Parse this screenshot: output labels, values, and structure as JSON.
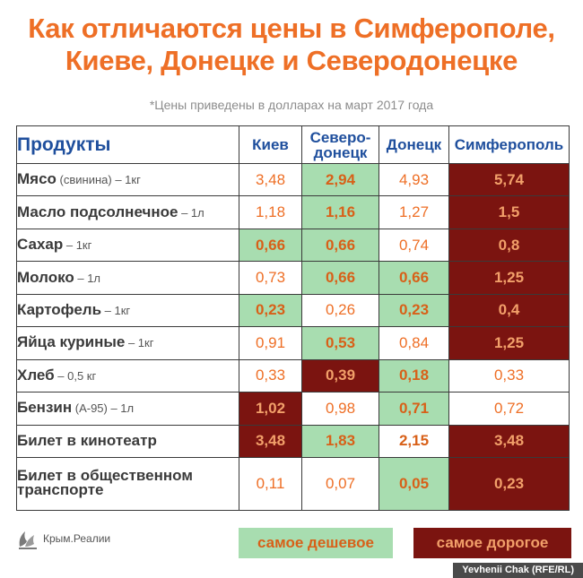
{
  "title_line1": "Как отличаются цены в Симферополе,",
  "title_line2": "Киеве, Донецке и Северодонецке",
  "subtitle": "*Цены приведены в долларах на март 2017 года",
  "headers": {
    "products": "Продукты",
    "kiev": "Киев",
    "severodonetsk_line1": "Северо-",
    "severodonetsk_line2": "донецк",
    "donetsk": "Донецк",
    "simferopol": "Симферополь"
  },
  "rows": [
    {
      "name": "Мясо",
      "unit": " (свинина) – 1кг",
      "kiev": "3,48",
      "severo": "2,94",
      "donetsk": "4,93",
      "simf": "5,74"
    },
    {
      "name": "Масло подсолнечное",
      "unit": " – 1л",
      "kiev": "1,18",
      "severo": "1,16",
      "donetsk": "1,27",
      "simf": "1,5"
    },
    {
      "name": "Сахар",
      "unit": " – 1кг",
      "kiev": "0,66",
      "severo": "0,66",
      "donetsk": "0,74",
      "simf": "0,8"
    },
    {
      "name": "Молоко",
      "unit": " – 1л",
      "kiev": "0,73",
      "severo": "0,66",
      "donetsk": "0,66",
      "simf": "1,25"
    },
    {
      "name": "Картофель",
      "unit": " – 1кг",
      "kiev": "0,23",
      "severo": "0,26",
      "donetsk": "0,23",
      "simf": "0,4"
    },
    {
      "name": "Яйца куриные",
      "unit": " – 1кг",
      "kiev": "0,91",
      "severo": "0,53",
      "donetsk": "0,84",
      "simf": "1,25"
    },
    {
      "name": "Хлеб",
      "unit": " – 0,5 кг",
      "kiev": "0,33",
      "severo": "0,39",
      "donetsk": "0,18",
      "simf": "0,33"
    },
    {
      "name": "Бензин",
      "unit": " (А-95) – 1л",
      "kiev": "1,02",
      "severo": "0,98",
      "donetsk": "0,71",
      "simf": "0,72"
    },
    {
      "name": "Билет в кинотеатр",
      "unit": "",
      "kiev": "3,48",
      "severo": "1,83",
      "donetsk": "2,15",
      "simf": "3,48"
    },
    {
      "name": "Билет в общественном транспорте",
      "unit": "",
      "kiev": "0,11",
      "severo": "0,07",
      "donetsk": "0,05",
      "simf": "0,23"
    }
  ],
  "legend": {
    "cheapest": "самое дешевое",
    "most_expensive": "самое дорогое"
  },
  "logo_text": "Крым.Реалии",
  "credit": "Yevhenii Chak (RFE/RL)",
  "colors": {
    "title_orange": "#ee6f26",
    "header_blue": "#1f4f9d",
    "cheapest_green": "#a8ddb0",
    "expensive_maroon": "#7b1410"
  }
}
